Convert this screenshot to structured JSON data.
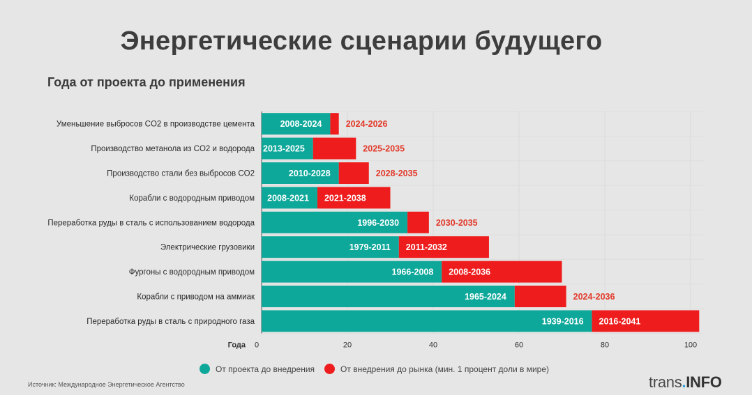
{
  "title": "Энергетические сценарии будущего",
  "subtitle": "Года от проекта до применения",
  "legend": [
    {
      "label": "От проекта до внедрения",
      "color": "#0ea89a"
    },
    {
      "label": "От внедрения до рынка (мин. 1 процент доли в мире)",
      "color": "#ee1c1c"
    }
  ],
  "source": "Источник: Международное Энергетическое Агентство",
  "logo": {
    "part1": "trans",
    "dot": ".",
    "part2": "INFO"
  },
  "colors": {
    "teal": "#0ea89a",
    "red": "#ee1c1c",
    "red_label": "#e23a2a"
  },
  "chart_data": {
    "type": "bar",
    "orientation": "horizontal",
    "stacked": true,
    "categories": [
      "Уменьшение выбросов CO2 в производстве цемента",
      "Производство метанола из CO2 и водорода",
      "Производство стали без выбросов CO2",
      "Корабли с водородным приводом",
      "Переработка руды в сталь с использованием водорода",
      "Электрические грузовики",
      "Фургоны с водородным приводом",
      "Корабли с приводом на аммиак",
      "Переработка руды в сталь с природного газа"
    ],
    "series": [
      {
        "name": "От проекта до внедрения",
        "values": [
          16,
          12,
          18,
          13,
          34,
          32,
          42,
          59,
          77
        ],
        "labels": [
          "2008-2024",
          "2013-2025",
          "2010-2028",
          "2008-2021",
          "1996-2030",
          "1979-2011",
          "1966-2008",
          "1965-2024",
          "1939-2016"
        ]
      },
      {
        "name": "От внедрения до рынка (мин. 1 процент доли в мире)",
        "values": [
          2,
          10,
          7,
          17,
          5,
          21,
          28,
          12,
          25
        ],
        "labels": [
          "2024-2026",
          "2025-2035",
          "2028-2035",
          "2021-2038",
          "2030-2035",
          "2011-2032",
          "2008-2036",
          "2024-2036",
          "2016-2041"
        ]
      }
    ],
    "xlabel": "Года",
    "xlim": [
      0,
      103
    ],
    "xticks": [
      0,
      20,
      40,
      60,
      80,
      100
    ],
    "grid": true,
    "legend_position": "bottom"
  }
}
